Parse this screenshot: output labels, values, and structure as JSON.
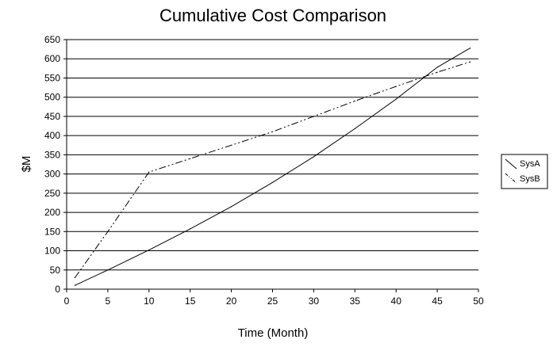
{
  "chart_data": {
    "type": "line",
    "title": "Cumulative Cost Comparison",
    "xlabel": "Time (Month)",
    "ylabel": "$M",
    "xlim": [
      0,
      50
    ],
    "ylim": [
      0,
      650
    ],
    "xticks": [
      0,
      5,
      10,
      15,
      20,
      25,
      30,
      35,
      40,
      45,
      50
    ],
    "yticks": [
      0,
      50,
      100,
      150,
      200,
      250,
      300,
      350,
      400,
      450,
      500,
      550,
      600,
      650
    ],
    "grid": "horizontal",
    "legend": "right",
    "series": [
      {
        "name": "SysA",
        "color": "#000000",
        "dash": "solid",
        "x": [
          1,
          5,
          10,
          15,
          20,
          25,
          30,
          35,
          40,
          45,
          49
        ],
        "y": [
          10,
          50,
          102,
          157,
          215,
          278,
          345,
          418,
          495,
          578,
          628
        ]
      },
      {
        "name": "SysB",
        "color": "#000000",
        "dash": "dash-dot-dot",
        "x": [
          1,
          5,
          10,
          15,
          20,
          25,
          30,
          35,
          40,
          45,
          49
        ],
        "y": [
          30,
          150,
          305,
          340,
          375,
          410,
          450,
          490,
          528,
          565,
          592
        ]
      }
    ]
  }
}
